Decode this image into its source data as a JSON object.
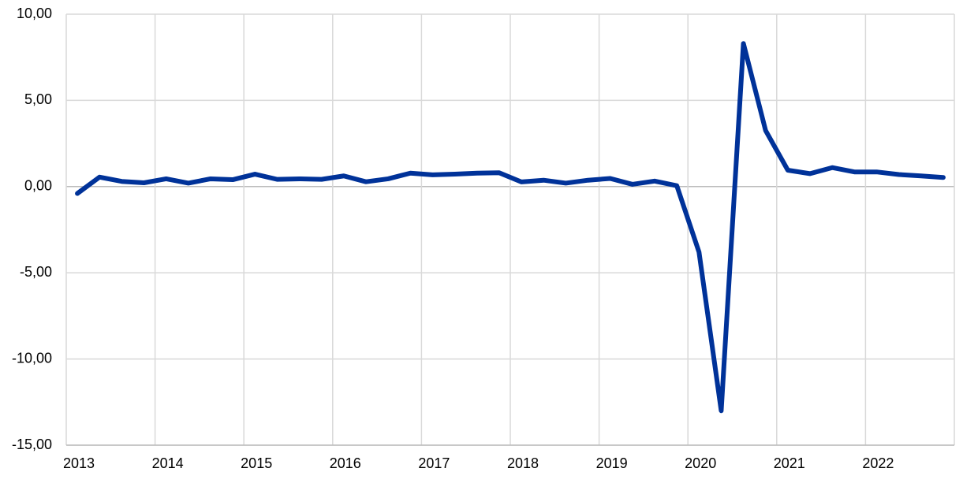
{
  "chart_data": {
    "type": "line",
    "categories": [
      "2013",
      null,
      null,
      null,
      "2014",
      null,
      null,
      null,
      "2015",
      null,
      null,
      null,
      "2016",
      null,
      null,
      null,
      "2017",
      null,
      null,
      null,
      "2018",
      null,
      null,
      null,
      "2019",
      null,
      null,
      null,
      "2020",
      null,
      null,
      null,
      "2021",
      null,
      null,
      null,
      "2022",
      null,
      null,
      null
    ],
    "series": [
      {
        "color": "#003299",
        "values": [
          -0.4,
          0.55,
          0.3,
          0.22,
          0.45,
          0.2,
          0.45,
          0.4,
          0.72,
          0.42,
          0.45,
          0.42,
          0.62,
          0.28,
          0.45,
          0.78,
          0.68,
          0.72,
          0.78,
          0.8,
          0.27,
          0.37,
          0.2,
          0.37,
          0.47,
          0.13,
          0.32,
          0.05,
          -3.8,
          -13.0,
          8.3,
          3.25,
          0.95,
          0.75,
          1.1,
          0.85,
          0.85,
          0.7,
          0.62,
          0.53
        ]
      }
    ],
    "ylim": [
      -15,
      10
    ],
    "yticks": [
      {
        "value": -15,
        "label": "-15,00"
      },
      {
        "value": -10,
        "label": "-10,00"
      },
      {
        "value": -5,
        "label": "-5,00"
      },
      {
        "value": 0,
        "label": "0,00"
      },
      {
        "value": 5,
        "label": "5,00"
      },
      {
        "value": 10,
        "label": "10,00"
      }
    ],
    "grid": true
  }
}
